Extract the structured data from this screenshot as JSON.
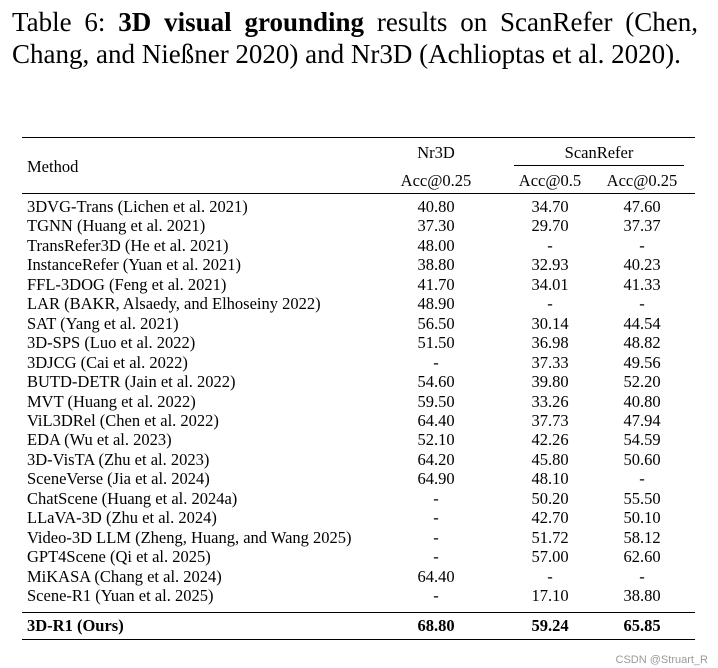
{
  "caption": {
    "label": "Table 6:",
    "bold": "3D visual grounding",
    "text": "results on ScanRefer (Chen, Chang, and Nießner 2020) and Nr3D (Achlioptas et al. 2020)."
  },
  "headers": {
    "method": "Method",
    "nr3d": "Nr3D",
    "scanrefer": "ScanRefer",
    "nr3d_acc": "Acc@0.25",
    "sr_acc05": "Acc@0.5",
    "sr_acc025": "Acc@0.25"
  },
  "rows": [
    {
      "method": "3DVG-Trans (Lichen et al. 2021)",
      "nr3d": "40.80",
      "sr05": "34.70",
      "sr025": "47.60"
    },
    {
      "method": "TGNN (Huang et al. 2021)",
      "nr3d": "37.30",
      "sr05": "29.70",
      "sr025": "37.37"
    },
    {
      "method": "TransRefer3D (He et al. 2021)",
      "nr3d": "48.00",
      "sr05": "-",
      "sr025": "-"
    },
    {
      "method": "InstanceRefer (Yuan et al. 2021)",
      "nr3d": "38.80",
      "sr05": "32.93",
      "sr025": "40.23"
    },
    {
      "method": "FFL-3DOG (Feng et al. 2021)",
      "nr3d": "41.70",
      "sr05": "34.01",
      "sr025": "41.33"
    },
    {
      "method": "LAR (BAKR, Alsaedy, and Elhoseiny 2022)",
      "nr3d": "48.90",
      "sr05": "-",
      "sr025": "-"
    },
    {
      "method": "SAT (Yang et al. 2021)",
      "nr3d": "56.50",
      "sr05": "30.14",
      "sr025": "44.54"
    },
    {
      "method": "3D-SPS (Luo et al. 2022)",
      "nr3d": "51.50",
      "sr05": "36.98",
      "sr025": "48.82"
    },
    {
      "method": "3DJCG (Cai et al. 2022)",
      "nr3d": "-",
      "sr05": "37.33",
      "sr025": "49.56"
    },
    {
      "method": "BUTD-DETR (Jain et al. 2022)",
      "nr3d": "54.60",
      "sr05": "39.80",
      "sr025": "52.20"
    },
    {
      "method": "MVT (Huang et al. 2022)",
      "nr3d": "59.50",
      "sr05": "33.26",
      "sr025": "40.80"
    },
    {
      "method": "ViL3DRel (Chen et al. 2022)",
      "nr3d": "64.40",
      "sr05": "37.73",
      "sr025": "47.94"
    },
    {
      "method": "EDA (Wu et al. 2023)",
      "nr3d": "52.10",
      "sr05": "42.26",
      "sr025": "54.59"
    },
    {
      "method": "3D-VisTA (Zhu et al. 2023)",
      "nr3d": "64.20",
      "sr05": "45.80",
      "sr025": "50.60"
    },
    {
      "method": "SceneVerse (Jia et al. 2024)",
      "nr3d": "64.90",
      "sr05": "48.10",
      "sr025": "-"
    },
    {
      "method": "ChatScene (Huang et al. 2024a)",
      "nr3d": "-",
      "sr05": "50.20",
      "sr025": "55.50"
    },
    {
      "method": "LLaVA-3D (Zhu et al. 2024)",
      "nr3d": "-",
      "sr05": "42.70",
      "sr025": "50.10"
    },
    {
      "method": "Video-3D LLM (Zheng, Huang, and Wang 2025)",
      "nr3d": "-",
      "sr05": "51.72",
      "sr025": "58.12"
    },
    {
      "method": "GPT4Scene (Qi et al. 2025)",
      "nr3d": "-",
      "sr05": "57.00",
      "sr025": "62.60"
    },
    {
      "method": "MiKASA (Chang et al. 2024)",
      "nr3d": "64.40",
      "sr05": "-",
      "sr025": "-"
    },
    {
      "method": "Scene-R1 (Yuan et al. 2025)",
      "nr3d": "-",
      "sr05": "17.10",
      "sr025": "38.80"
    }
  ],
  "final_row": {
    "method": "3D-R1 (Ours)",
    "nr3d": "68.80",
    "sr05": "59.24",
    "sr025": "65.85"
  },
  "watermark": "CSDN @Struart_R"
}
